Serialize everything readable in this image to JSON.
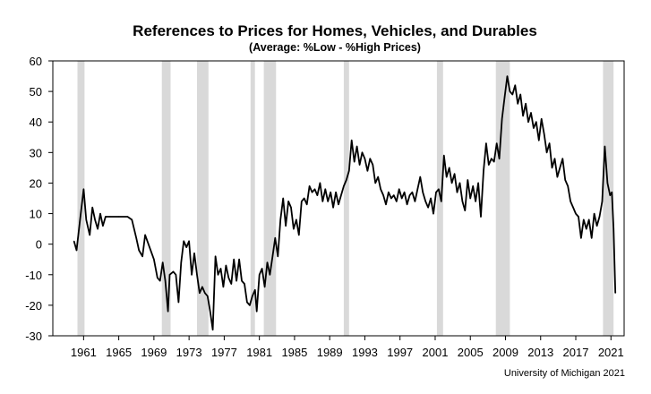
{
  "chart_data": {
    "type": "line",
    "title": "References to Prices for Homes, Vehicles, and Durables",
    "subtitle": "(Average:  %Low - %High Prices)",
    "source": "University of Michigan 2021",
    "xlabel": "",
    "ylabel": "",
    "xlim": [
      1957.5,
      2022.5
    ],
    "ylim": [
      -30,
      60
    ],
    "yticks": [
      -30,
      -20,
      -10,
      0,
      10,
      20,
      30,
      40,
      50,
      60
    ],
    "xticks": [
      1961,
      1965,
      1969,
      1973,
      1977,
      1981,
      1985,
      1989,
      1993,
      1997,
      2001,
      2005,
      2009,
      2013,
      2017,
      2021
    ],
    "grid": false,
    "legend": "none",
    "colors": {
      "line": "#000000",
      "recession": "#d9d9d9",
      "axis": "#000000"
    },
    "recessions": [
      [
        1960.3,
        1961.1
      ],
      [
        1969.9,
        1970.9
      ],
      [
        1973.9,
        1975.2
      ],
      [
        1980.0,
        1980.5
      ],
      [
        1981.5,
        1982.9
      ],
      [
        1990.6,
        1991.2
      ],
      [
        2001.2,
        2001.9
      ],
      [
        2007.9,
        2009.5
      ],
      [
        2020.1,
        2021.3
      ]
    ],
    "series": [
      {
        "values": [
          [
            1959.9,
            1
          ],
          [
            1960.2,
            -2
          ],
          [
            1960.6,
            8
          ],
          [
            1961.0,
            18
          ],
          [
            1961.3,
            8
          ],
          [
            1961.7,
            3
          ],
          [
            1962.0,
            12
          ],
          [
            1962.3,
            8
          ],
          [
            1962.6,
            5
          ],
          [
            1962.9,
            10
          ],
          [
            1963.2,
            6
          ],
          [
            1963.5,
            9
          ],
          [
            1964.0,
            9
          ],
          [
            1965.0,
            9
          ],
          [
            1966.0,
            9
          ],
          [
            1966.5,
            8
          ],
          [
            1967.0,
            2
          ],
          [
            1967.3,
            -2
          ],
          [
            1967.7,
            -4
          ],
          [
            1968.0,
            3
          ],
          [
            1968.5,
            -1
          ],
          [
            1969.0,
            -5
          ],
          [
            1969.4,
            -11
          ],
          [
            1969.7,
            -12
          ],
          [
            1970.0,
            -6
          ],
          [
            1970.3,
            -12
          ],
          [
            1970.6,
            -22
          ],
          [
            1970.8,
            -10
          ],
          [
            1971.2,
            -9
          ],
          [
            1971.5,
            -10
          ],
          [
            1971.8,
            -19
          ],
          [
            1972.1,
            -6
          ],
          [
            1972.4,
            1
          ],
          [
            1972.7,
            -1
          ],
          [
            1973.0,
            1
          ],
          [
            1973.3,
            -10
          ],
          [
            1973.6,
            -3
          ],
          [
            1973.9,
            -10
          ],
          [
            1974.2,
            -16
          ],
          [
            1974.5,
            -14
          ],
          [
            1974.8,
            -16
          ],
          [
            1975.1,
            -17
          ],
          [
            1975.4,
            -22
          ],
          [
            1975.7,
            -28
          ],
          [
            1976.0,
            -4
          ],
          [
            1976.3,
            -10
          ],
          [
            1976.6,
            -8
          ],
          [
            1976.9,
            -14
          ],
          [
            1977.2,
            -7
          ],
          [
            1977.5,
            -11
          ],
          [
            1977.8,
            -13
          ],
          [
            1978.1,
            -5
          ],
          [
            1978.4,
            -12
          ],
          [
            1978.7,
            -5
          ],
          [
            1979.0,
            -12
          ],
          [
            1979.3,
            -13
          ],
          [
            1979.6,
            -19
          ],
          [
            1979.9,
            -20
          ],
          [
            1980.2,
            -17
          ],
          [
            1980.5,
            -15
          ],
          [
            1980.7,
            -22
          ],
          [
            1981.0,
            -10
          ],
          [
            1981.3,
            -8
          ],
          [
            1981.6,
            -14
          ],
          [
            1981.9,
            -6
          ],
          [
            1982.2,
            -10
          ],
          [
            1982.5,
            -4
          ],
          [
            1982.8,
            2
          ],
          [
            1983.1,
            -4
          ],
          [
            1983.4,
            8
          ],
          [
            1983.7,
            15
          ],
          [
            1984.0,
            6
          ],
          [
            1984.3,
            14
          ],
          [
            1984.6,
            12
          ],
          [
            1984.9,
            5
          ],
          [
            1985.2,
            8
          ],
          [
            1985.5,
            3
          ],
          [
            1985.8,
            14
          ],
          [
            1986.1,
            15
          ],
          [
            1986.4,
            13
          ],
          [
            1986.7,
            19
          ],
          [
            1987.0,
            17
          ],
          [
            1987.3,
            18
          ],
          [
            1987.6,
            16
          ],
          [
            1987.9,
            20
          ],
          [
            1988.2,
            14
          ],
          [
            1988.5,
            18
          ],
          [
            1988.8,
            14
          ],
          [
            1989.1,
            17
          ],
          [
            1989.4,
            12
          ],
          [
            1989.7,
            17
          ],
          [
            1990.0,
            13
          ],
          [
            1990.3,
            16
          ],
          [
            1990.6,
            19
          ],
          [
            1990.9,
            21
          ],
          [
            1991.2,
            24
          ],
          [
            1991.5,
            34
          ],
          [
            1991.8,
            27
          ],
          [
            1992.1,
            32
          ],
          [
            1992.4,
            26
          ],
          [
            1992.7,
            30
          ],
          [
            1993.0,
            28
          ],
          [
            1993.3,
            24
          ],
          [
            1993.6,
            28
          ],
          [
            1993.9,
            26
          ],
          [
            1994.2,
            20
          ],
          [
            1994.5,
            22
          ],
          [
            1994.8,
            18
          ],
          [
            1995.1,
            16
          ],
          [
            1995.4,
            13
          ],
          [
            1995.7,
            17
          ],
          [
            1996.0,
            15
          ],
          [
            1996.3,
            16
          ],
          [
            1996.6,
            14
          ],
          [
            1996.9,
            18
          ],
          [
            1997.2,
            15
          ],
          [
            1997.5,
            17
          ],
          [
            1997.8,
            13
          ],
          [
            1998.1,
            16
          ],
          [
            1998.4,
            17
          ],
          [
            1998.7,
            14
          ],
          [
            1999.0,
            18
          ],
          [
            1999.3,
            22
          ],
          [
            1999.6,
            17
          ],
          [
            1999.9,
            14
          ],
          [
            2000.2,
            12
          ],
          [
            2000.5,
            15
          ],
          [
            2000.8,
            10
          ],
          [
            2001.1,
            17
          ],
          [
            2001.4,
            18
          ],
          [
            2001.7,
            14
          ],
          [
            2002.0,
            29
          ],
          [
            2002.3,
            22
          ],
          [
            2002.6,
            25
          ],
          [
            2002.9,
            20
          ],
          [
            2003.2,
            23
          ],
          [
            2003.5,
            17
          ],
          [
            2003.8,
            20
          ],
          [
            2004.1,
            14
          ],
          [
            2004.4,
            11
          ],
          [
            2004.7,
            21
          ],
          [
            2005.0,
            15
          ],
          [
            2005.3,
            19
          ],
          [
            2005.6,
            14
          ],
          [
            2005.9,
            20
          ],
          [
            2006.2,
            9
          ],
          [
            2006.5,
            24
          ],
          [
            2006.8,
            33
          ],
          [
            2007.1,
            26
          ],
          [
            2007.4,
            28
          ],
          [
            2007.7,
            27
          ],
          [
            2008.0,
            33
          ],
          [
            2008.3,
            28
          ],
          [
            2008.6,
            41
          ],
          [
            2008.9,
            48
          ],
          [
            2009.2,
            55
          ],
          [
            2009.5,
            50
          ],
          [
            2009.8,
            49
          ],
          [
            2010.1,
            52
          ],
          [
            2010.4,
            46
          ],
          [
            2010.7,
            49
          ],
          [
            2011.0,
            42
          ],
          [
            2011.3,
            46
          ],
          [
            2011.6,
            40
          ],
          [
            2011.9,
            43
          ],
          [
            2012.2,
            38
          ],
          [
            2012.5,
            40
          ],
          [
            2012.8,
            34
          ],
          [
            2013.1,
            41
          ],
          [
            2013.4,
            36
          ],
          [
            2013.7,
            30
          ],
          [
            2014.0,
            33
          ],
          [
            2014.3,
            25
          ],
          [
            2014.6,
            28
          ],
          [
            2014.9,
            22
          ],
          [
            2015.2,
            25
          ],
          [
            2015.5,
            28
          ],
          [
            2015.8,
            21
          ],
          [
            2016.1,
            19
          ],
          [
            2016.4,
            14
          ],
          [
            2016.7,
            12
          ],
          [
            2017.0,
            10
          ],
          [
            2017.3,
            9
          ],
          [
            2017.6,
            2
          ],
          [
            2017.9,
            8
          ],
          [
            2018.2,
            5
          ],
          [
            2018.5,
            8
          ],
          [
            2018.8,
            2
          ],
          [
            2019.1,
            10
          ],
          [
            2019.4,
            6
          ],
          [
            2019.7,
            9
          ],
          [
            2020.0,
            14
          ],
          [
            2020.3,
            32
          ],
          [
            2020.6,
            20
          ],
          [
            2020.9,
            16
          ],
          [
            2021.1,
            17
          ],
          [
            2021.3,
            5
          ],
          [
            2021.5,
            -16
          ]
        ]
      }
    ]
  }
}
